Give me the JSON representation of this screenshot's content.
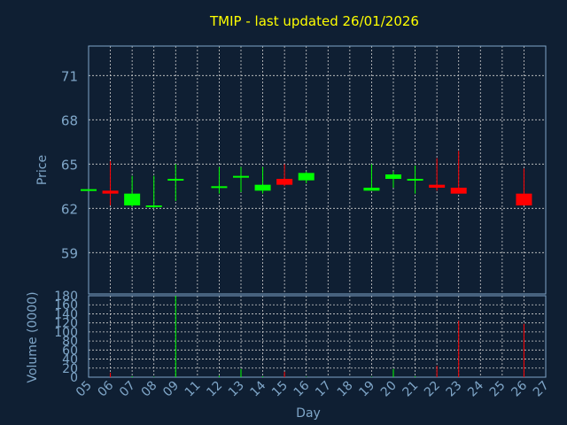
{
  "colors": {
    "background": "#0f1f33",
    "up": "#00ff00",
    "down": "#ff0000",
    "title": "#ffff00",
    "axis": "#7fa6c8",
    "grid": "#d0d0d0"
  },
  "chart_data": {
    "type": "candlestick",
    "title": "TMIP - last updated 26/01/2026",
    "xlabel": "Day",
    "ylabel": "Price",
    "volume_label": "Volume (0000)",
    "x_ticks": [
      "05",
      "06",
      "07",
      "08",
      "09",
      "11",
      "12",
      "13",
      "14",
      "15",
      "16",
      "17",
      "18",
      "19",
      "20",
      "21",
      "22",
      "23",
      "24",
      "25",
      "26",
      "27"
    ],
    "y_ticks": [
      59,
      62,
      65,
      68,
      71
    ],
    "y_tick_labels": [
      "59",
      "62",
      "65",
      "68",
      "71"
    ],
    "ylim": [
      56.2,
      73.0
    ],
    "volume_ticks": [
      0,
      20,
      40,
      60,
      80,
      100,
      120,
      140,
      160,
      180
    ],
    "volume_tick_labels": [
      "0",
      "20",
      "40",
      "60",
      "80",
      "100",
      "120",
      "140",
      "160",
      "180"
    ],
    "volume_lim": [
      0,
      180
    ],
    "grid": true,
    "candles": [
      {
        "day": "05",
        "open": 63.2,
        "high": 63.2,
        "low": 63.2,
        "close": 63.3,
        "volume": 0
      },
      {
        "day": "06",
        "open": 63.2,
        "high": 65.2,
        "low": 62.2,
        "close": 63.0,
        "volume": 10
      },
      {
        "day": "07",
        "open": 62.2,
        "high": 64.2,
        "low": 62.1,
        "close": 63.0,
        "volume": 2
      },
      {
        "day": "08",
        "open": 62.1,
        "high": 64.2,
        "low": 62.0,
        "close": 62.2,
        "volume": 1
      },
      {
        "day": "09",
        "open": 63.9,
        "high": 65.0,
        "low": 62.5,
        "close": 64.0,
        "volume": 180
      },
      {
        "day": "12",
        "open": 63.4,
        "high": 64.8,
        "low": 63.0,
        "close": 63.5,
        "volume": 3
      },
      {
        "day": "13",
        "open": 64.1,
        "high": 64.8,
        "low": 63.1,
        "close": 64.2,
        "volume": 18
      },
      {
        "day": "14",
        "open": 63.2,
        "high": 64.8,
        "low": 63.0,
        "close": 63.6,
        "volume": 2
      },
      {
        "day": "15",
        "open": 64.0,
        "high": 65.0,
        "low": 63.5,
        "close": 63.6,
        "volume": 12
      },
      {
        "day": "16",
        "open": 63.9,
        "high": 64.5,
        "low": 63.7,
        "close": 64.4,
        "volume": 1
      },
      {
        "day": "19",
        "open": 63.2,
        "high": 65.0,
        "low": 63.2,
        "close": 63.4,
        "volume": 1
      },
      {
        "day": "20",
        "open": 64.0,
        "high": 64.5,
        "low": 63.4,
        "close": 64.3,
        "volume": 18
      },
      {
        "day": "21",
        "open": 63.9,
        "high": 64.9,
        "low": 63.0,
        "close": 64.0,
        "volume": 2
      },
      {
        "day": "22",
        "open": 63.6,
        "high": 65.4,
        "low": 63.2,
        "close": 63.4,
        "volume": 25
      },
      {
        "day": "23",
        "open": 63.4,
        "high": 65.9,
        "low": 63.0,
        "close": 63.0,
        "volume": 125
      },
      {
        "day": "26",
        "open": 63.0,
        "high": 64.7,
        "low": 62.2,
        "close": 62.2,
        "volume": 118
      }
    ]
  }
}
